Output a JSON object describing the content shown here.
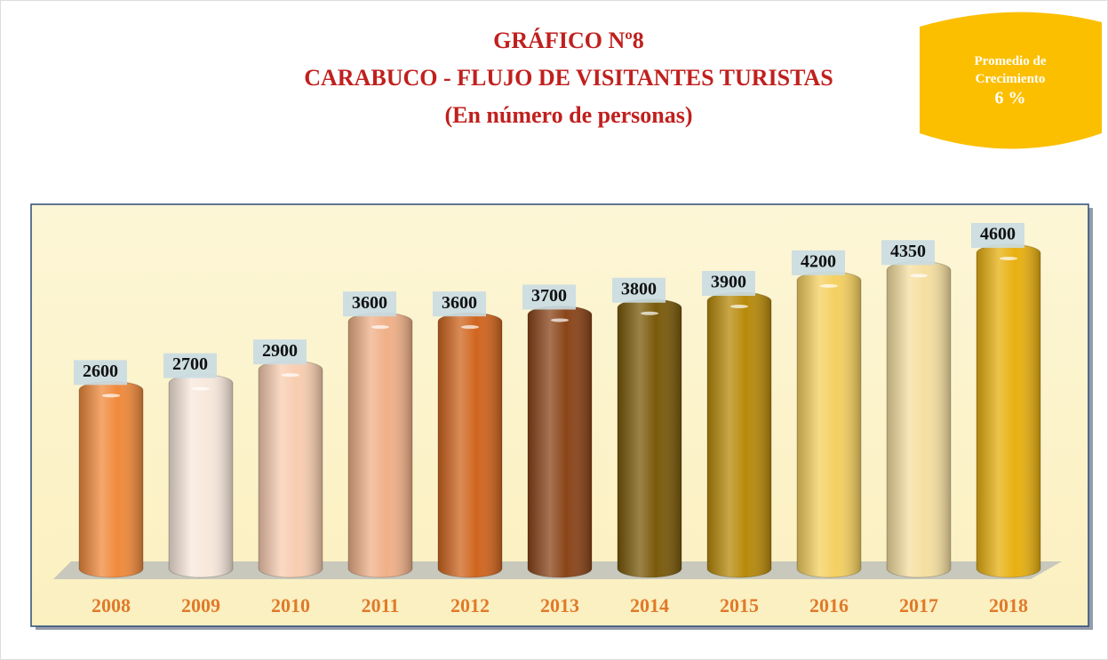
{
  "chart_data": {
    "type": "bar",
    "title": "GRÁFICO Nº8",
    "subtitle": "CARABUCO - FLUJO DE VISITANTES TURISTAS",
    "unit_note": "(En número de personas)",
    "badge": {
      "label": "Promedio de Crecimiento",
      "value": "6 %"
    },
    "categories": [
      "2008",
      "2009",
      "2010",
      "2011",
      "2012",
      "2013",
      "2014",
      "2015",
      "2016",
      "2017",
      "2018"
    ],
    "values": [
      2600,
      2700,
      2900,
      3600,
      3600,
      3700,
      3800,
      3900,
      4200,
      4350,
      4600
    ],
    "colors": [
      "#f08a3c",
      "#f8e8dc",
      "#f8cdb0",
      "#f0b088",
      "#d0651e",
      "#8a4418",
      "#7a5a0a",
      "#b88a0a",
      "#f5d060",
      "#f5dfa0",
      "#e8b010"
    ]
  }
}
